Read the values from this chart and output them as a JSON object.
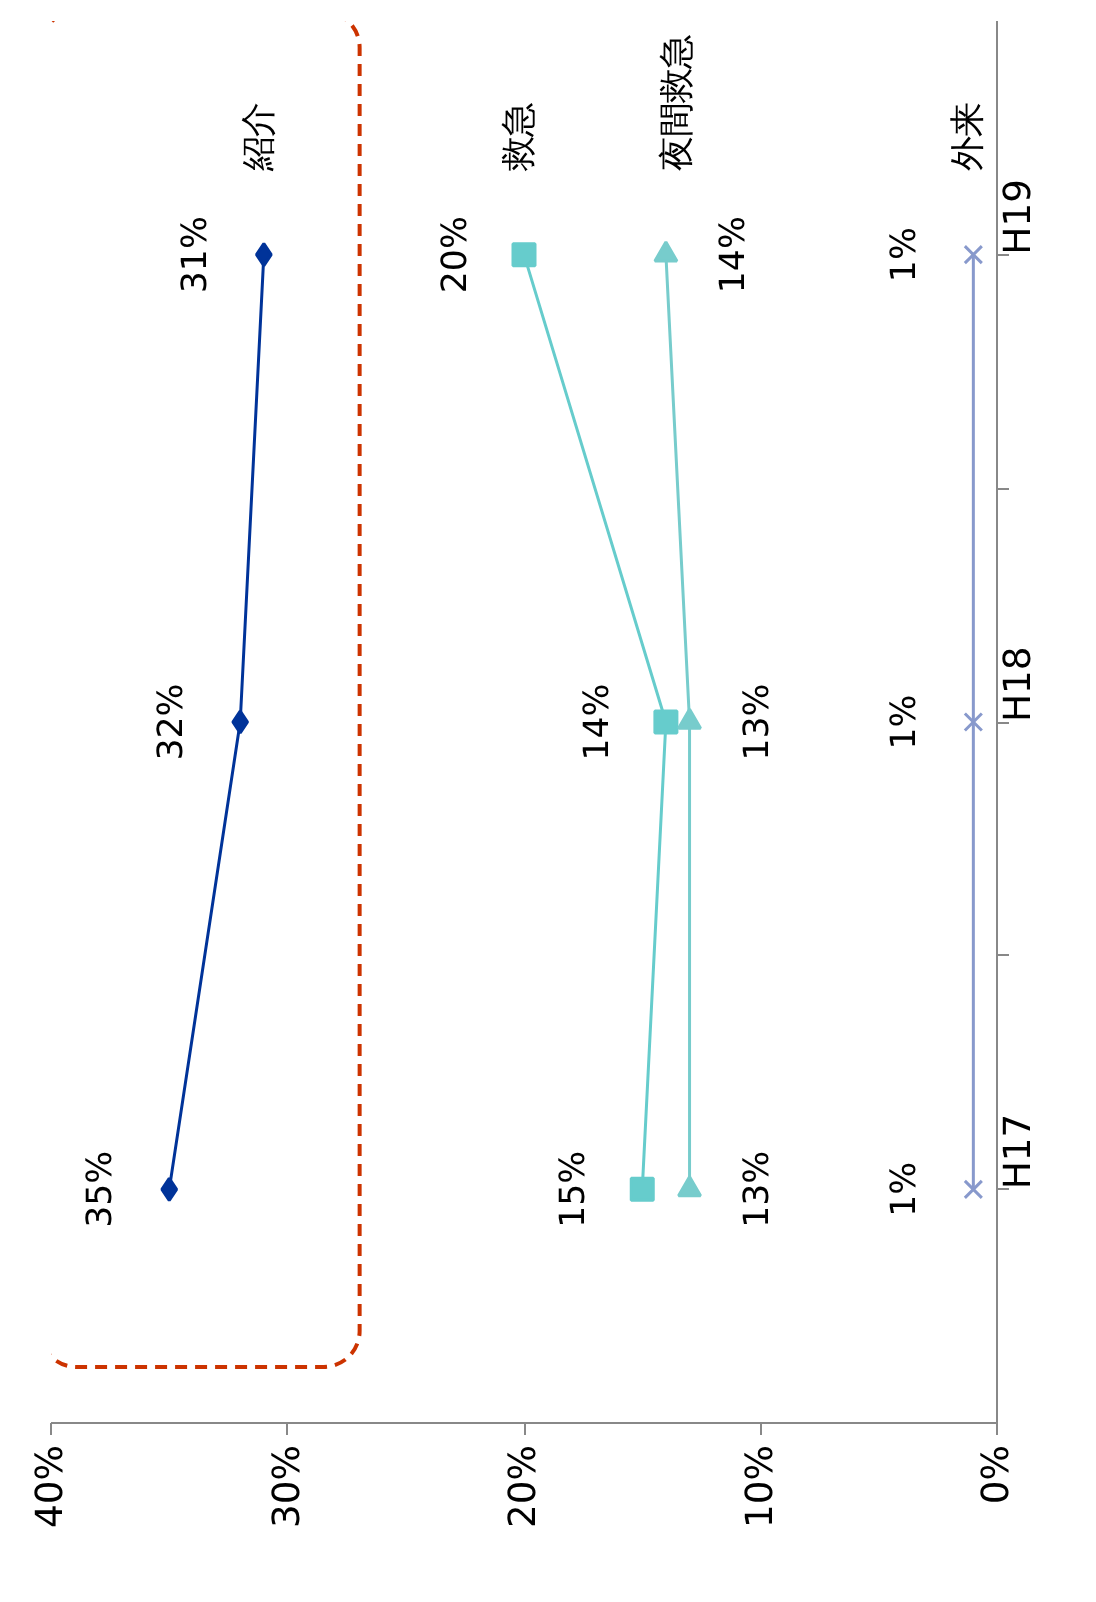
{
  "chart_data": {
    "type": "line",
    "orientation": "horizontal",
    "categories": [
      "H19",
      "H18",
      "H17"
    ],
    "series": [
      {
        "name": "紹介",
        "color": "#003399",
        "marker": "diamond",
        "values": [
          31,
          32,
          35
        ],
        "value_labels": [
          "31%",
          "32%",
          "35%"
        ]
      },
      {
        "name": "救急",
        "color": "#66cccc",
        "marker": "square",
        "values": [
          20,
          14,
          15
        ],
        "value_labels": [
          "20%",
          "14%",
          "15%"
        ]
      },
      {
        "name": "夜間救急",
        "color": "#77cccc",
        "marker": "triangle",
        "values": [
          14,
          13,
          13
        ],
        "value_labels": [
          "14%",
          "13%",
          "13%"
        ]
      },
      {
        "name": "外来",
        "color": "#8899cc",
        "marker": "cross",
        "values": [
          1,
          1,
          1
        ],
        "value_labels": [
          "1%",
          "1%",
          "1%"
        ]
      }
    ],
    "xlim": [
      40,
      0
    ],
    "xticks": [
      {
        "value": 40,
        "label": "40%"
      },
      {
        "value": 30,
        "label": "30%"
      },
      {
        "value": 20,
        "label": "20%"
      },
      {
        "value": 10,
        "label": "10%"
      },
      {
        "value": 0,
        "label": "0%"
      }
    ],
    "grid": false
  }
}
